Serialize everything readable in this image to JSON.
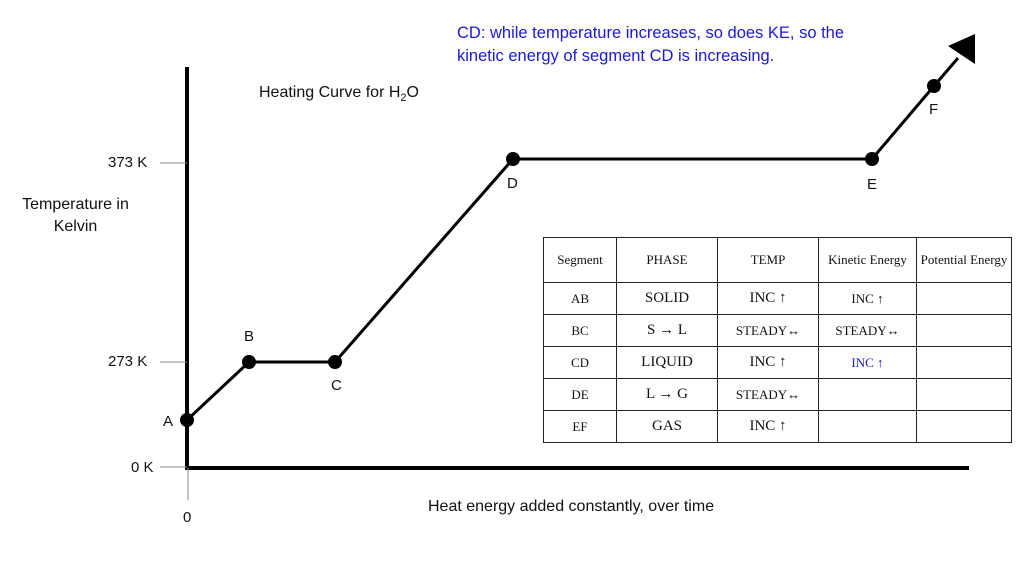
{
  "annotation": "CD: while temperature increases, so does KE, so the kinetic energy of segment CD is increasing.",
  "chart_data": {
    "type": "line",
    "title_main": "Heating Curve for H",
    "title_sub": "2",
    "title_end": "O",
    "ylabel": "Temperature in Kelvin",
    "xlabel": "Heat energy added constantly, over time",
    "y_ticks": [
      "373 K",
      "273 K",
      "0 K"
    ],
    "x_ticks": [
      "0"
    ],
    "points": [
      {
        "label": "A"
      },
      {
        "label": "B"
      },
      {
        "label": "C"
      },
      {
        "label": "D"
      },
      {
        "label": "E"
      },
      {
        "label": "F"
      }
    ]
  },
  "colors": {
    "annotation": "#1a1ad6",
    "line": "#000000"
  },
  "table": {
    "headers": [
      "Segment",
      "PHASE",
      "TEMP",
      "Kinetic Energy",
      "Potential Energy"
    ],
    "rows": [
      {
        "segment": "AB",
        "phase": "SOLID",
        "temp": "INC ↑",
        "ke": "INC ↑",
        "pe": ""
      },
      {
        "segment": "BC",
        "phase": "S → L",
        "temp": "STEADY↔",
        "ke": "STEADY↔",
        "pe": ""
      },
      {
        "segment": "CD",
        "phase": "LIQUID",
        "temp": "INC ↑",
        "ke": "INC ↑",
        "pe": ""
      },
      {
        "segment": "DE",
        "phase": "L → G",
        "temp": "STEADY↔",
        "ke": "",
        "pe": ""
      },
      {
        "segment": "EF",
        "phase": "GAS",
        "temp": "INC ↑",
        "ke": "",
        "pe": ""
      }
    ]
  }
}
